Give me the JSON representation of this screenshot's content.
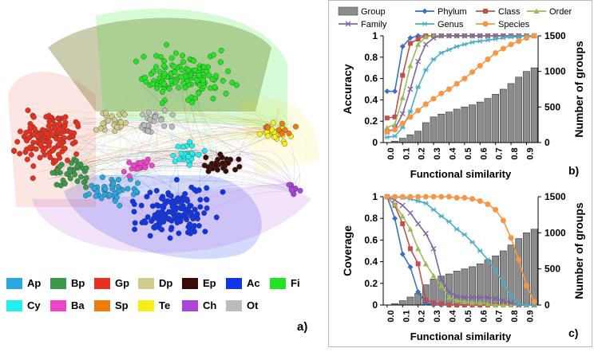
{
  "panel_a": {
    "label": "a)",
    "legend": [
      {
        "code": "Ap",
        "color": "#2aa7e0"
      },
      {
        "code": "Bp",
        "color": "#3a9a4a"
      },
      {
        "code": "Gp",
        "color": "#e8301c"
      },
      {
        "code": "Dp",
        "color": "#d0cc8c"
      },
      {
        "code": "Ep",
        "color": "#3a0c06"
      },
      {
        "code": "Ac",
        "color": "#1034e8"
      },
      {
        "code": "Fi",
        "color": "#22e422"
      },
      {
        "code": "Cy",
        "color": "#22eeee"
      },
      {
        "code": "Ba",
        "color": "#ee44cc"
      },
      {
        "code": "Sp",
        "color": "#f07a10"
      },
      {
        "code": "Te",
        "color": "#f4f018"
      },
      {
        "code": "Ch",
        "color": "#aa44dd"
      },
      {
        "code": "Ot",
        "color": "#bbbbbb"
      }
    ]
  },
  "legend_series": [
    {
      "name": "Group",
      "color": "#8c8c8c"
    },
    {
      "name": "Phylum",
      "color": "#3b6fc0"
    },
    {
      "name": "Class",
      "color": "#c0504d"
    },
    {
      "name": "Order",
      "color": "#9bbb59"
    },
    {
      "name": "Family",
      "color": "#8064a2"
    },
    {
      "name": "Genus",
      "color": "#4bacc6"
    },
    {
      "name": "Species",
      "color": "#f79646"
    }
  ],
  "chart_data": [
    {
      "type": "line",
      "panel_label": "b)",
      "ylabel": "Accuracy",
      "y2label": "Number of groups",
      "xlabel": "Functional similarity",
      "x": [
        0.0,
        0.05,
        0.1,
        0.15,
        0.2,
        0.25,
        0.3,
        0.35,
        0.4,
        0.45,
        0.5,
        0.55,
        0.6,
        0.65,
        0.7,
        0.75,
        0.8,
        0.85,
        0.9,
        0.95
      ],
      "xticks": [
        "0.0",
        "0.1",
        "0.2",
        "0.3",
        "0.4",
        "0.5",
        "0.6",
        "0.7",
        "0.8",
        "0.9"
      ],
      "ylim": [
        0,
        1
      ],
      "yticks": [
        "0",
        "0.2",
        "0.4",
        "0.6",
        "0.8",
        "1"
      ],
      "y2lim": [
        0,
        1500
      ],
      "y2ticks": [
        "0",
        "500",
        "1000",
        "1500"
      ],
      "bars": [
        0,
        20,
        60,
        110,
        160,
        280,
        360,
        400,
        430,
        470,
        500,
        530,
        570,
        620,
        680,
        750,
        830,
        920,
        1000,
        1050
      ],
      "series": [
        {
          "name": "Phylum",
          "values": [
            0.48,
            0.48,
            0.9,
            0.98,
            1,
            1,
            1,
            1,
            1,
            1,
            1,
            1,
            1,
            1,
            1,
            1,
            1,
            1,
            1,
            1
          ]
        },
        {
          "name": "Class",
          "values": [
            0.23,
            0.24,
            0.63,
            0.93,
            0.97,
            1,
            1,
            1,
            1,
            1,
            1,
            1,
            1,
            1,
            1,
            1,
            1,
            1,
            1,
            1
          ]
        },
        {
          "name": "Order",
          "values": [
            0.14,
            0.17,
            0.42,
            0.72,
            0.92,
            0.99,
            1,
            1,
            1,
            1,
            1,
            1,
            1,
            1,
            1,
            1,
            1,
            1,
            1,
            1
          ]
        },
        {
          "name": "Family",
          "values": [
            0.1,
            0.13,
            0.27,
            0.5,
            0.76,
            0.92,
            0.98,
            1,
            1,
            1,
            1,
            1,
            1,
            1,
            1,
            1,
            1,
            1,
            1,
            1
          ]
        },
        {
          "name": "Genus",
          "values": [
            0.05,
            0.06,
            0.14,
            0.29,
            0.52,
            0.68,
            0.78,
            0.84,
            0.87,
            0.9,
            0.92,
            0.94,
            0.95,
            0.96,
            0.97,
            0.98,
            0.99,
            0.99,
            1,
            1
          ]
        },
        {
          "name": "Species",
          "values": [
            0.1,
            0.12,
            0.18,
            0.24,
            0.3,
            0.36,
            0.41,
            0.46,
            0.5,
            0.55,
            0.6,
            0.66,
            0.72,
            0.78,
            0.84,
            0.88,
            0.92,
            0.95,
            0.98,
            1
          ]
        }
      ]
    },
    {
      "type": "line",
      "panel_label": "c)",
      "ylabel": "Coverage",
      "y2label": "Number of groups",
      "xlabel": "Functional similarity",
      "x": [
        0.0,
        0.05,
        0.1,
        0.15,
        0.2,
        0.25,
        0.3,
        0.35,
        0.4,
        0.45,
        0.5,
        0.55,
        0.6,
        0.65,
        0.7,
        0.75,
        0.8,
        0.85,
        0.9,
        0.95
      ],
      "xticks": [
        "0.0",
        "0.1",
        "0.2",
        "0.3",
        "0.4",
        "0.5",
        "0.6",
        "0.7",
        "0.8",
        "0.9"
      ],
      "ylim": [
        0,
        1
      ],
      "yticks": [
        "0",
        "0.2",
        "0.4",
        "0.6",
        "0.8",
        "1"
      ],
      "y2lim": [
        0,
        1500
      ],
      "y2ticks": [
        "0",
        "500",
        "1000",
        "1500"
      ],
      "bars": [
        0,
        20,
        60,
        110,
        160,
        280,
        360,
        400,
        430,
        470,
        500,
        530,
        570,
        620,
        680,
        750,
        830,
        920,
        1000,
        1050
      ],
      "series": [
        {
          "name": "Phylum",
          "values": [
            1,
            0.8,
            0.47,
            0.35,
            0.12,
            0.02,
            0,
            0,
            0,
            0,
            0,
            0,
            0,
            0,
            0,
            0,
            0,
            0,
            0,
            0
          ]
        },
        {
          "name": "Class",
          "values": [
            1,
            0.92,
            0.75,
            0.52,
            0.38,
            0.05,
            0.02,
            0.01,
            0,
            0,
            0,
            0,
            0,
            0,
            0,
            0,
            0,
            0,
            0,
            0
          ]
        },
        {
          "name": "Order",
          "values": [
            1,
            0.93,
            0.82,
            0.7,
            0.52,
            0.38,
            0.27,
            0.18,
            0.07,
            0.04,
            0.03,
            0.02,
            0.02,
            0.01,
            0,
            0,
            0,
            0,
            0,
            0
          ]
        },
        {
          "name": "Family",
          "values": [
            1,
            0.97,
            0.92,
            0.85,
            0.75,
            0.66,
            0.52,
            0.24,
            0.12,
            0.08,
            0.07,
            0.07,
            0.07,
            0.07,
            0.06,
            0.04,
            0.02,
            0,
            0,
            0
          ]
        },
        {
          "name": "Genus",
          "values": [
            1,
            1,
            0.99,
            0.98,
            0.96,
            0.94,
            0.88,
            0.82,
            0.77,
            0.7,
            0.65,
            0.58,
            0.5,
            0.42,
            0.32,
            0.2,
            0.08,
            0.01,
            0,
            0
          ]
        },
        {
          "name": "Species",
          "values": [
            1,
            1,
            1,
            1,
            1,
            1,
            1,
            1,
            1,
            0.99,
            0.99,
            0.98,
            0.96,
            0.93,
            0.88,
            0.78,
            0.62,
            0.42,
            0.18,
            0.03
          ]
        }
      ]
    }
  ]
}
